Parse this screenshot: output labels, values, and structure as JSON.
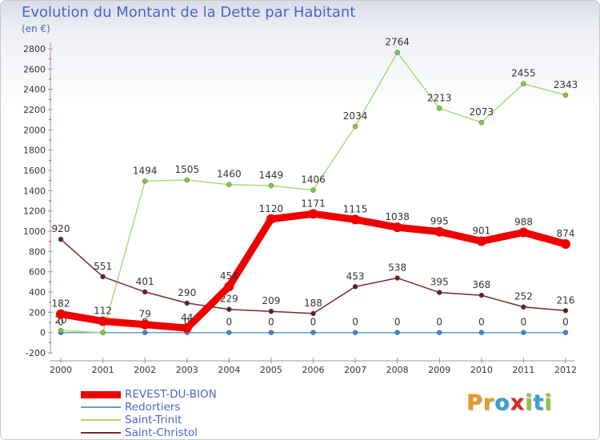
{
  "title": "Evolution du Montant de la Dette par Habitant",
  "unit_label": "(en €)",
  "logo": {
    "text": "Proxiti",
    "letters": [
      "P",
      "r",
      "o",
      "x",
      "i",
      "t",
      "i"
    ],
    "colors": [
      "#e89a1c",
      "#e89a1c",
      "#3aa0d8",
      "#d62a2a",
      "#8cc63f",
      "#3aa0d8",
      "#8cc63f"
    ]
  },
  "chart_data": {
    "type": "line",
    "x": [
      "2000",
      "2001",
      "2002",
      "2003",
      "2004",
      "2005",
      "2006",
      "2007",
      "2008",
      "2009",
      "2010",
      "2011",
      "2012"
    ],
    "ylim": [
      -200,
      2800
    ],
    "yticks": [
      -200,
      0,
      200,
      400,
      600,
      800,
      1000,
      1200,
      1400,
      1600,
      1800,
      2000,
      2200,
      2400,
      2600,
      2800
    ],
    "grid": false,
    "legend_position": "bottom-left",
    "series": [
      {
        "name": "Redortiers",
        "color": "#6a9cc8",
        "marker": "#3a86d0",
        "width": 1.5,
        "values": [
          0,
          0,
          0,
          0,
          0,
          0,
          0,
          0,
          0,
          0,
          0,
          0,
          0
        ],
        "labels": [
          "0",
          "0",
          "0",
          "0",
          "0",
          "0",
          "0",
          "0",
          "0",
          "0",
          "0",
          "0",
          "0"
        ]
      },
      {
        "name": "Saint-Trinit",
        "color": "#a8dc78",
        "marker": "#7ccc3c",
        "width": 1.5,
        "values": [
          20,
          0,
          1494,
          1505,
          1460,
          1449,
          1406,
          2034,
          2764,
          2213,
          2073,
          2455,
          2343
        ],
        "labels": [
          "20",
          "0",
          "1494",
          "1505",
          "1460",
          "1449",
          "1406",
          "2034",
          "2764",
          "2213",
          "2073",
          "2455",
          "2343"
        ]
      },
      {
        "name": "Saint-Christol",
        "color": "#7a2a2a",
        "marker": "#6a1e1e",
        "width": 1.5,
        "values": [
          920,
          551,
          401,
          290,
          229,
          209,
          188,
          453,
          538,
          395,
          368,
          252,
          216
        ],
        "labels": [
          "920",
          "551",
          "401",
          "290",
          "229",
          "209",
          "188",
          "453",
          "538",
          "395",
          "368",
          "252",
          "216"
        ]
      },
      {
        "name": "REVEST-DU-BION",
        "color": "#ee0000",
        "marker": "#ee0000",
        "width": 9,
        "values": [
          182,
          112,
          79,
          44,
          454,
          1120,
          1171,
          1115,
          1038,
          995,
          901,
          988,
          874
        ],
        "labels": [
          "182",
          "112",
          "79",
          "44",
          "454",
          "1120",
          "1171",
          "1115",
          "1038",
          "995",
          "901",
          "988",
          "874"
        ]
      }
    ],
    "legend": [
      {
        "name": "REVEST-DU-BION",
        "color": "#ee0000",
        "width": 9
      },
      {
        "name": "Redortiers",
        "color": "#6a9cc8",
        "width": 2
      },
      {
        "name": "Saint-Trinit",
        "color": "#a8dc78",
        "width": 2
      },
      {
        "name": "Saint-Christol",
        "color": "#7a2a2a",
        "width": 2
      }
    ]
  }
}
